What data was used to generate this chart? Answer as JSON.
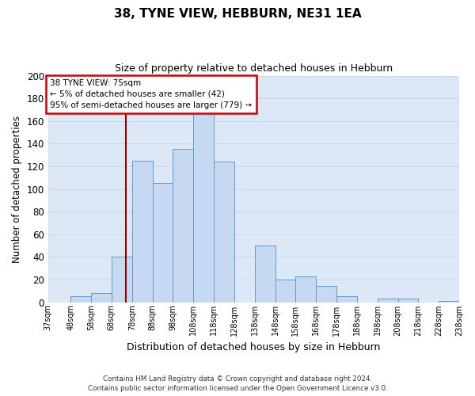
{
  "title": "38, TYNE VIEW, HEBBURN, NE31 1EA",
  "subtitle": "Size of property relative to detached houses in Hebburn",
  "xlabel": "Distribution of detached houses by size in Hebburn",
  "ylabel": "Number of detached properties",
  "bin_edges": [
    37,
    48,
    58,
    68,
    78,
    88,
    98,
    108,
    118,
    128,
    138,
    148,
    158,
    168,
    178,
    188,
    198,
    208,
    218,
    228,
    238
  ],
  "bin_labels": [
    "37sqm",
    "48sqm",
    "58sqm",
    "68sqm",
    "78sqm",
    "88sqm",
    "98sqm",
    "108sqm",
    "118sqm",
    "128sqm",
    "138sqm",
    "148sqm",
    "158sqm",
    "168sqm",
    "178sqm",
    "188sqm",
    "198sqm",
    "208sqm",
    "218sqm",
    "228sqm",
    "238sqm"
  ],
  "counts": [
    0,
    5,
    8,
    40,
    125,
    105,
    135,
    167,
    124,
    0,
    50,
    20,
    23,
    14,
    5,
    0,
    3,
    3,
    0,
    1
  ],
  "bar_color": "#c6d9f0",
  "bar_edge_color": "#5b9bd5",
  "grid_color": "#c8d8e8",
  "background_color": "#dce8f5",
  "vline_x": 75,
  "vline_color": "#990000",
  "annotation_title": "38 TYNE VIEW: 75sqm",
  "annotation_line1": "← 5% of detached houses are smaller (42)",
  "annotation_line2": "95% of semi-detached houses are larger (779) →",
  "annotation_box_color": "#cc0000",
  "ylim": [
    0,
    200
  ],
  "yticks": [
    0,
    20,
    40,
    60,
    80,
    100,
    120,
    140,
    160,
    180,
    200
  ],
  "footer_line1": "Contains HM Land Registry data © Crown copyright and database right 2024.",
  "footer_line2": "Contains public sector information licensed under the Open Government Licence v3.0."
}
